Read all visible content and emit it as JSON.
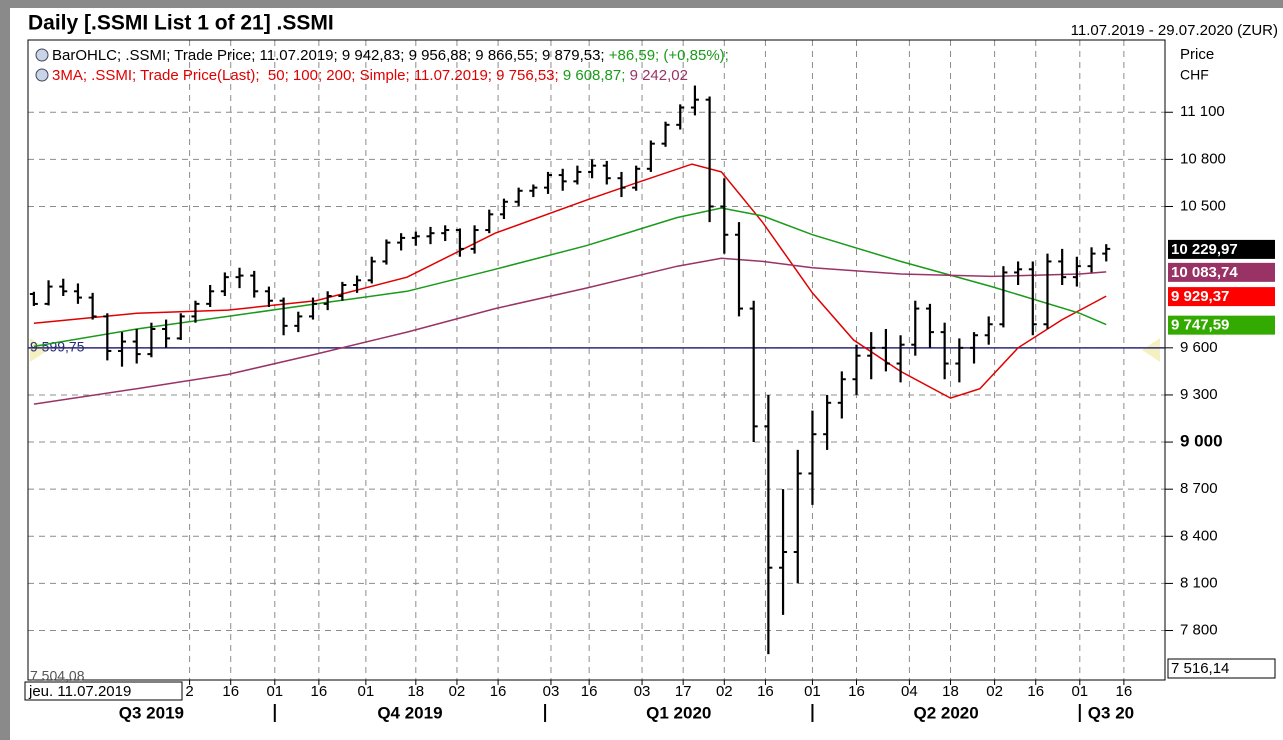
{
  "header": {
    "title": "Daily [.SSMI List 1 of 21] .SSMI",
    "range": "11.07.2019 - 29.07.2020 (ZUR)",
    "price_label": "Price",
    "currency": "CHF",
    "date_box": "jeu. 11.07.2019"
  },
  "legend": [
    [
      {
        "text": "BarOHLC; .SSMI; Trade Price; 11.07.2019; 9 942,83; 9 956,88; 9 866,55; 9 879,53; ",
        "color": "#000000"
      },
      {
        "text": "+86,59; (+0,85%);",
        "color": "#1a9a1a"
      }
    ],
    [
      {
        "text": "3MA; .SSMI; Trade Price(Last);  50; 100; 200; Simple; 11.07.2019; 9 756,53; ",
        "color": "#e00000"
      },
      {
        "text": "9 608,87; ",
        "color": "#1a9a1a"
      },
      {
        "text": "9 242,02",
        "color": "#993366"
      }
    ]
  ],
  "chart_data": {
    "type": "ohlc",
    "color": "#000000",
    "x": [
      "2019-07-11",
      "2019-07-16",
      "2019-07-21",
      "2019-07-26",
      "2019-07-31",
      "2019-08-05",
      "2019-08-10",
      "2019-08-15",
      "2019-08-20",
      "2019-08-25",
      "2019-08-30",
      "2019-09-04",
      "2019-09-09",
      "2019-09-14",
      "2019-09-19",
      "2019-09-24",
      "2019-09-29",
      "2019-10-04",
      "2019-10-09",
      "2019-10-14",
      "2019-10-19",
      "2019-10-24",
      "2019-10-29",
      "2019-11-03",
      "2019-11-08",
      "2019-11-13",
      "2019-11-18",
      "2019-11-23",
      "2019-11-28",
      "2019-12-03",
      "2019-12-08",
      "2019-12-13",
      "2019-12-18",
      "2019-12-23",
      "2019-12-28",
      "2020-01-02",
      "2020-01-07",
      "2020-01-12",
      "2020-01-17",
      "2020-01-22",
      "2020-01-27",
      "2020-02-01",
      "2020-02-06",
      "2020-02-11",
      "2020-02-16",
      "2020-02-21",
      "2020-02-26",
      "2020-03-02",
      "2020-03-07",
      "2020-03-12",
      "2020-03-17",
      "2020-03-22",
      "2020-03-27",
      "2020-04-01",
      "2020-04-06",
      "2020-04-11",
      "2020-04-16",
      "2020-04-21",
      "2020-04-26",
      "2020-05-01",
      "2020-05-06",
      "2020-05-11",
      "2020-05-16",
      "2020-05-21",
      "2020-05-26",
      "2020-05-31",
      "2020-06-05",
      "2020-06-10",
      "2020-06-15",
      "2020-06-20",
      "2020-06-25",
      "2020-06-30",
      "2020-07-05",
      "2020-07-10"
    ],
    "open": [
      9942.83,
      9880,
      9990,
      9960,
      9920,
      9800,
      9580,
      9640,
      9560,
      9720,
      9660,
      9800,
      9880,
      9960,
      10050,
      10060,
      9960,
      9900,
      9740,
      9800,
      9880,
      9930,
      10000,
      10030,
      10150,
      10270,
      10300,
      10310,
      10330,
      10350,
      10230,
      10350,
      10450,
      10530,
      10600,
      10620,
      10700,
      10660,
      10720,
      10760,
      10680,
      10620,
      10740,
      10900,
      11020,
      11130,
      11180,
      10500,
      10320,
      9850,
      9100,
      8200,
      8300,
      8800,
      9050,
      9250,
      9400,
      9550,
      9600,
      9500,
      9620,
      9850,
      9700,
      9500,
      9600,
      9680,
      9750,
      10080,
      10100,
      9750,
      10150,
      10050,
      10120,
      10200
    ],
    "high": [
      9956.88,
      10030,
      10040,
      10010,
      9950,
      9820,
      9700,
      9720,
      9760,
      9780,
      9820,
      9900,
      10000,
      10080,
      10110,
      10090,
      9990,
      9920,
      9830,
      9920,
      9960,
      10020,
      10060,
      10180,
      10290,
      10330,
      10340,
      10370,
      10380,
      10360,
      10380,
      10480,
      10550,
      10620,
      10640,
      10720,
      10740,
      10760,
      10800,
      10790,
      10720,
      10760,
      10920,
      11040,
      11150,
      11270,
      11200,
      10680,
      10400,
      9900,
      9300,
      8700,
      8950,
      9200,
      9300,
      9450,
      9620,
      9700,
      9720,
      9680,
      9900,
      9880,
      9760,
      9660,
      9700,
      9800,
      10120,
      10150,
      10150,
      10200,
      10230,
      10180,
      10240,
      10260
    ],
    "low": [
      9866.55,
      9870,
      9930,
      9880,
      9780,
      9520,
      9480,
      9500,
      9540,
      9600,
      9650,
      9760,
      9860,
      9930,
      9980,
      9920,
      9860,
      9680,
      9700,
      9780,
      9840,
      9900,
      9950,
      10010,
      10130,
      10220,
      10250,
      10260,
      10280,
      10180,
      10200,
      10330,
      10420,
      10500,
      10560,
      10580,
      10600,
      10640,
      10680,
      10640,
      10560,
      10600,
      10720,
      10880,
      10990,
      11080,
      10400,
      10200,
      9800,
      9000,
      7650,
      7900,
      8100,
      8600,
      8950,
      9150,
      9300,
      9400,
      9450,
      9380,
      9550,
      9600,
      9400,
      9380,
      9500,
      9620,
      9730,
      10000,
      9680,
      9720,
      10000,
      9990,
      10080,
      10150
    ],
    "close": [
      9879.53,
      9990,
      9960,
      9920,
      9800,
      9580,
      9640,
      9560,
      9720,
      9660,
      9800,
      9880,
      9960,
      10050,
      10060,
      9960,
      9900,
      9740,
      9800,
      9880,
      9930,
      10000,
      10030,
      10150,
      10270,
      10300,
      10310,
      10330,
      10350,
      10230,
      10350,
      10450,
      10530,
      10600,
      10620,
      10700,
      10660,
      10720,
      10760,
      10680,
      10620,
      10740,
      10900,
      11020,
      11130,
      11180,
      10500,
      10320,
      9850,
      9100,
      8200,
      8300,
      8800,
      9050,
      9250,
      9400,
      9550,
      9600,
      9500,
      9620,
      9850,
      9700,
      9500,
      9600,
      9680,
      9750,
      10080,
      10100,
      9750,
      10150,
      10050,
      10120,
      10200,
      10229.97
    ],
    "series": [
      {
        "color": "#e00000",
        "x": [
          "2019-07-11",
          "2019-08-15",
          "2019-09-15",
          "2019-10-15",
          "2019-11-15",
          "2019-12-15",
          "2020-01-15",
          "2020-02-01",
          "2020-02-20",
          "2020-03-01",
          "2020-03-15",
          "2020-04-01",
          "2020-04-15",
          "2020-05-01",
          "2020-05-18",
          "2020-05-28",
          "2020-06-10",
          "2020-06-25",
          "2020-07-10"
        ],
        "values": [
          9756.53,
          9820,
          9840,
          9900,
          10050,
          10330,
          10540,
          10650,
          10770,
          10720,
          10400,
          9950,
          9650,
          9450,
          9280,
          9340,
          9600,
          9780,
          9929.37
        ]
      },
      {
        "color": "#1a9a1a",
        "x": [
          "2019-07-11",
          "2019-08-15",
          "2019-09-15",
          "2019-10-15",
          "2019-11-15",
          "2019-12-15",
          "2020-01-15",
          "2020-02-15",
          "2020-03-01",
          "2020-03-15",
          "2020-04-01",
          "2020-05-01",
          "2020-06-01",
          "2020-07-01",
          "2020-07-10"
        ],
        "values": [
          9608.87,
          9720,
          9800,
          9880,
          9960,
          10100,
          10250,
          10430,
          10490,
          10440,
          10320,
          10150,
          9990,
          9820,
          9747.59
        ]
      },
      {
        "color": "#993366",
        "x": [
          "2019-07-11",
          "2019-08-15",
          "2019-09-15",
          "2019-10-15",
          "2019-11-15",
          "2019-12-15",
          "2020-01-15",
          "2020-02-15",
          "2020-03-01",
          "2020-03-15",
          "2020-04-01",
          "2020-05-01",
          "2020-06-01",
          "2020-07-01",
          "2020-07-10"
        ],
        "values": [
          9242.02,
          9340,
          9430,
          9560,
          9700,
          9850,
          9980,
          10120,
          10170,
          10150,
          10110,
          10070,
          10055,
          10070,
          10083.74
        ]
      }
    ],
    "xlim": [
      "2019-07-09",
      "2020-07-30"
    ],
    "ylim": [
      7485,
      11560
    ],
    "yticks": [
      {
        "value": 7800,
        "label": "7 800"
      },
      {
        "value": 8100,
        "label": "8 100"
      },
      {
        "value": 8400,
        "label": "8 400"
      },
      {
        "value": 8700,
        "label": "8 700"
      },
      {
        "value": 9000,
        "label": "9 000",
        "bold": true
      },
      {
        "value": 9300,
        "label": "9 300"
      },
      {
        "value": 9600,
        "label": "9 600"
      },
      {
        "value": 10500,
        "label": "10 500"
      },
      {
        "value": 10800,
        "label": "10 800"
      },
      {
        "value": 11100,
        "label": "11 100"
      }
    ],
    "xticks": [
      {
        "value": "2019-09-02",
        "label": "2"
      },
      {
        "value": "2019-09-16",
        "label": "16"
      },
      {
        "value": "2019-10-01",
        "label": "01"
      },
      {
        "value": "2019-10-16",
        "label": "16"
      },
      {
        "value": "2019-11-01",
        "label": "01"
      },
      {
        "value": "2019-11-18",
        "label": "18"
      },
      {
        "value": "2019-12-02",
        "label": "02"
      },
      {
        "value": "2019-12-16",
        "label": "16"
      },
      {
        "value": "2020-01-03",
        "label": "03"
      },
      {
        "value": "2020-01-16",
        "label": "16"
      },
      {
        "value": "2020-02-03",
        "label": "03"
      },
      {
        "value": "2020-02-17",
        "label": "17"
      },
      {
        "value": "2020-03-02",
        "label": "02"
      },
      {
        "value": "2020-03-16",
        "label": "16"
      },
      {
        "value": "2020-04-01",
        "label": "01"
      },
      {
        "value": "2020-04-16",
        "label": "16"
      },
      {
        "value": "2020-05-04",
        "label": "04"
      },
      {
        "value": "2020-05-18",
        "label": "18"
      },
      {
        "value": "2020-06-02",
        "label": "02"
      },
      {
        "value": "2020-06-16",
        "label": "16"
      },
      {
        "value": "2020-07-01",
        "label": "01"
      },
      {
        "value": "2020-07-16",
        "label": "16"
      }
    ],
    "quarters": [
      {
        "value": "2019-07-01",
        "label": "Q3 2019"
      },
      {
        "value": "2019-10-01",
        "label": "Q4 2019"
      },
      {
        "value": "2020-01-01",
        "label": "Q1 2020"
      },
      {
        "value": "2020-04-01",
        "label": "Q2 2020"
      },
      {
        "value": "2020-07-01",
        "label": "Q3 20"
      }
    ],
    "grid": true,
    "hline": {
      "value": 9599.75,
      "label": "9 599,75",
      "color": "#2a2a7a"
    },
    "min_label": {
      "value": 7504.08,
      "label": "7 504,08"
    },
    "last_labels": [
      {
        "value": 10229.97,
        "label": "10 229,97",
        "color": "#000000"
      },
      {
        "value": 10083.74,
        "label": "10 083,74",
        "color": "#993366"
      },
      {
        "value": 9929.37,
        "label": "9 929,37",
        "color": "#ff0000"
      },
      {
        "value": 9747.59,
        "label": "9 747,59",
        "color": "#33aa00"
      },
      {
        "value": 7516.14,
        "label": "7 516,14",
        "color": "#ffffff"
      }
    ]
  }
}
